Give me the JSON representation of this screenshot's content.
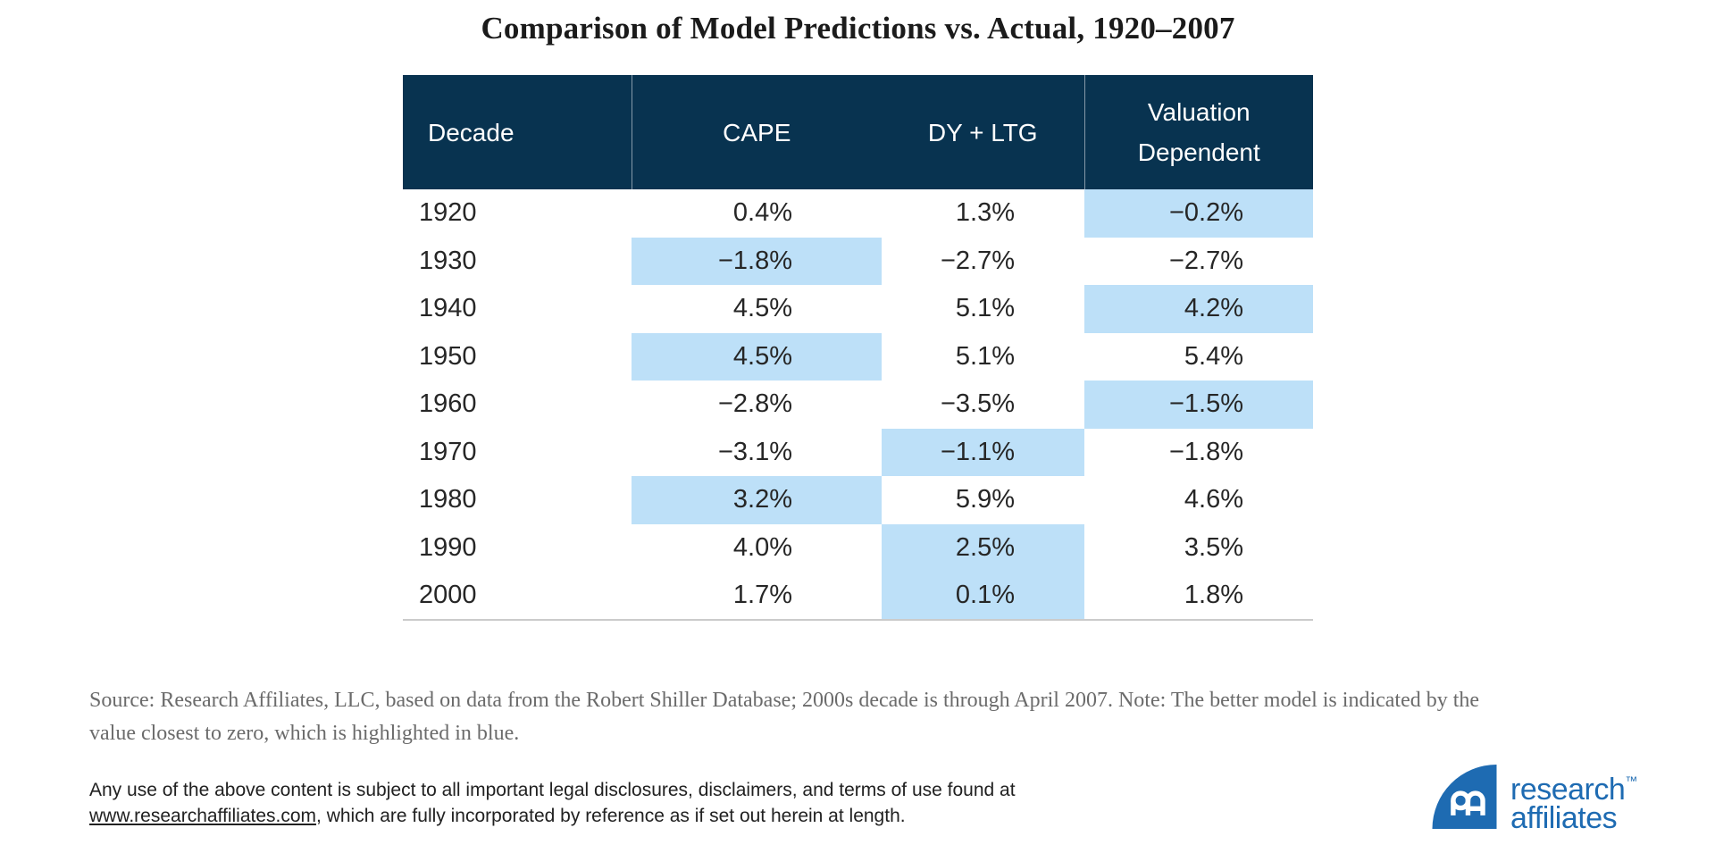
{
  "title": "Comparison of Model Predictions vs. Actual, 1920–2007",
  "table": {
    "columns": [
      "Decade",
      "CAPE",
      "DY + LTG",
      "Valuation Dependent"
    ],
    "rows": [
      {
        "decade": "1920",
        "cape": "0.4%",
        "dy_ltg": "1.3%",
        "val_dep": "−0.2%",
        "highlight": "val_dep"
      },
      {
        "decade": "1930",
        "cape": "−1.8%",
        "dy_ltg": "−2.7%",
        "val_dep": "−2.7%",
        "highlight": "cape"
      },
      {
        "decade": "1940",
        "cape": "4.5%",
        "dy_ltg": "5.1%",
        "val_dep": "4.2%",
        "highlight": "val_dep"
      },
      {
        "decade": "1950",
        "cape": "4.5%",
        "dy_ltg": "5.1%",
        "val_dep": "5.4%",
        "highlight": "cape"
      },
      {
        "decade": "1960",
        "cape": "−2.8%",
        "dy_ltg": "−3.5%",
        "val_dep": "−1.5%",
        "highlight": "val_dep"
      },
      {
        "decade": "1970",
        "cape": "−3.1%",
        "dy_ltg": "−1.1%",
        "val_dep": "−1.8%",
        "highlight": "dy_ltg"
      },
      {
        "decade": "1980",
        "cape": "3.2%",
        "dy_ltg": "5.9%",
        "val_dep": "4.6%",
        "highlight": "cape"
      },
      {
        "decade": "1990",
        "cape": "4.0%",
        "dy_ltg": "2.5%",
        "val_dep": "3.5%",
        "highlight": "dy_ltg"
      },
      {
        "decade": "2000",
        "cape": "1.7%",
        "dy_ltg": "0.1%",
        "val_dep": "1.8%",
        "highlight": "dy_ltg"
      }
    ]
  },
  "source_note": "Source: Research Affiliates, LLC, based on data from the Robert Shiller Database; 2000s decade is through April 2007. Note: The better model is indicated by the value closest to zero, which is highlighted in blue.",
  "legal": {
    "line1": "Any use of the above content is subject to all important legal disclosures, disclaimers, and terms of use found at",
    "link": "www.researchaffiliates.com",
    "after_link": ", which are fully incorporated by reference as if set out herein at length."
  },
  "logo": {
    "line1": "research",
    "tm": "™",
    "line2": "affiliates"
  },
  "colors": {
    "header-bg": "#083350",
    "highlight": "#bde0f8",
    "logo-blue": "#1e6bb2",
    "body-text": "#262626",
    "note-gray": "#6b6b6b",
    "divider": "#cbcbcb"
  },
  "chart_data": {
    "type": "table",
    "title": "Comparison of Model Predictions vs. Actual, 1920–2007",
    "categories": [
      "1920",
      "1930",
      "1940",
      "1950",
      "1960",
      "1970",
      "1980",
      "1990",
      "2000"
    ],
    "series": [
      {
        "name": "CAPE",
        "values": [
          0.4,
          -1.8,
          4.5,
          4.5,
          -2.8,
          -3.1,
          3.2,
          4.0,
          1.7
        ]
      },
      {
        "name": "DY + LTG",
        "values": [
          1.3,
          -2.7,
          5.1,
          5.1,
          -3.5,
          -1.1,
          5.9,
          2.5,
          0.1
        ]
      },
      {
        "name": "Valuation Dependent",
        "values": [
          -0.2,
          -2.7,
          4.2,
          5.4,
          -1.5,
          -1.8,
          4.6,
          3.5,
          1.8
        ]
      }
    ],
    "units": "percent",
    "xlabel": "Decade",
    "highlighted_best_model": {
      "1920": "Valuation Dependent",
      "1930": "CAPE",
      "1940": "Valuation Dependent",
      "1950": "CAPE",
      "1960": "Valuation Dependent",
      "1970": "DY + LTG",
      "1980": "CAPE",
      "1990": "DY + LTG",
      "2000": "DY + LTG"
    },
    "legend_note": "Blue highlight marks the model value closest to zero (the better model)"
  }
}
